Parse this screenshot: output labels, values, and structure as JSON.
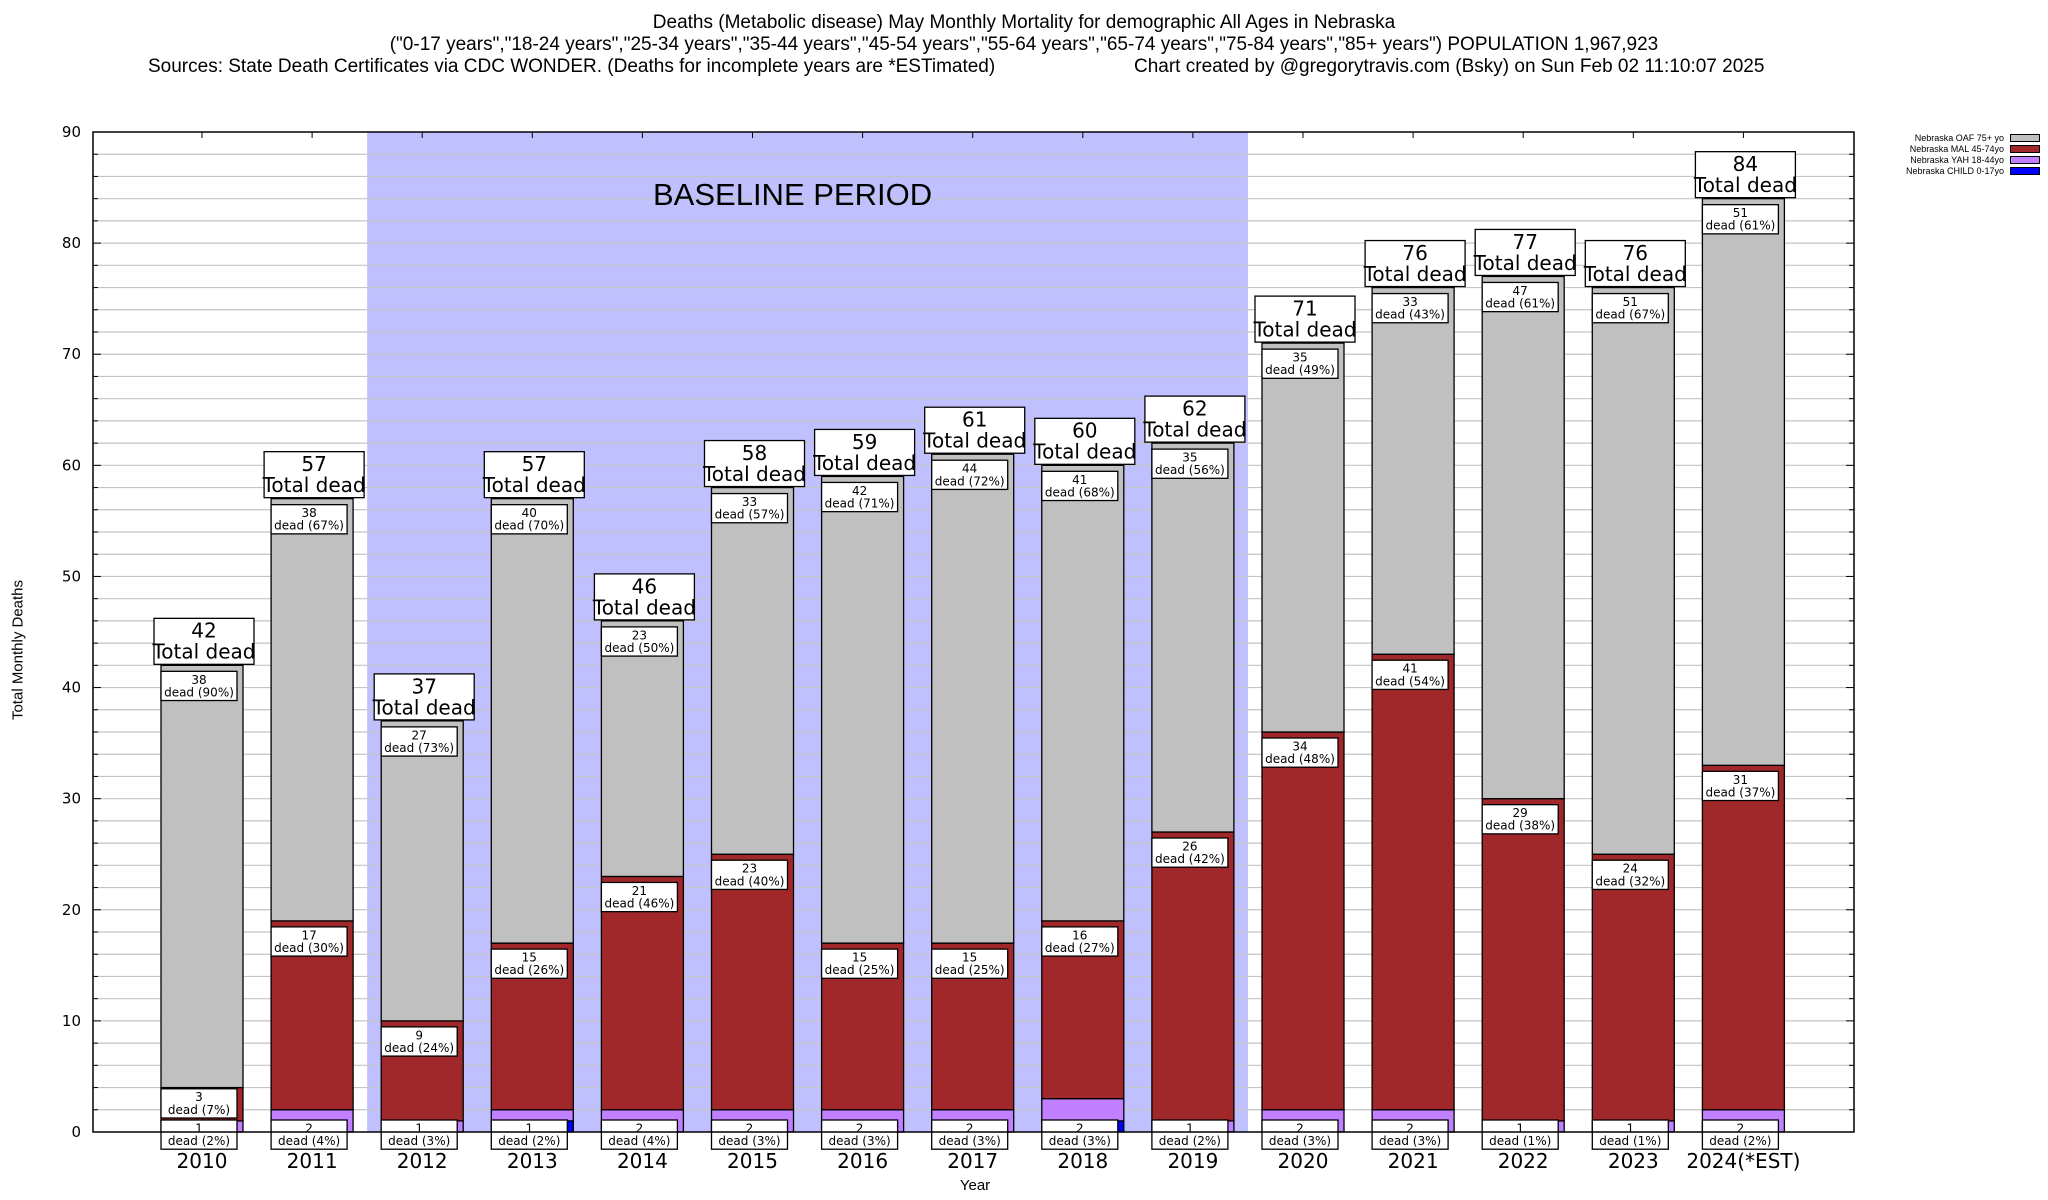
{
  "header": {
    "title": "Deaths (Metabolic disease) May Monthly Mortality for demographic All Ages in Nebraska",
    "subtitle": "(\"0-17 years\",\"18-24 years\",\"25-34 years\",\"35-44 years\",\"45-54 years\",\"55-64 years\",\"65-74 years\",\"75-84 years\",\"85+ years\") POPULATION 1,967,923",
    "sources": "Sources: State Death Certificates via CDC WONDER. (Deaths for incomplete years are *ESTimated)",
    "credit": "Chart created by @gregorytravis.com (Bsky) on Sun Feb 02 11:10:07 2025"
  },
  "chart_data": {
    "type": "bar",
    "stacked": true,
    "title": "Deaths (Metabolic disease) May Monthly Mortality for demographic All Ages in Nebraska",
    "xlabel": "Year",
    "ylabel": "Total Monthly Deaths",
    "ylim": [
      0,
      90
    ],
    "yticks": [
      0,
      10,
      20,
      30,
      40,
      50,
      60,
      70,
      80,
      90
    ],
    "grid": true,
    "legend_position": "top-right",
    "categories": [
      "2010",
      "2011",
      "2012",
      "2013",
      "2014",
      "2015",
      "2016",
      "2017",
      "2018",
      "2019",
      "2020",
      "2021",
      "2022",
      "2023",
      "2024(*EST)"
    ],
    "annotation": {
      "text": "BASELINE PERIOD",
      "from_category": "2012",
      "to_category": "2019",
      "color": "#c0c0ff"
    },
    "total_label_suffix": "Total dead",
    "segment_label_prefix": "dead",
    "totals": [
      42,
      57,
      37,
      57,
      46,
      58,
      59,
      61,
      60,
      62,
      71,
      76,
      77,
      76,
      84
    ],
    "series": [
      {
        "name": "Nebraska CHILD 0-17yo",
        "color": "#0000ff",
        "values": [
          0,
          0,
          0,
          1,
          0,
          0,
          0,
          0,
          1,
          0,
          0,
          0,
          0,
          0,
          0
        ],
        "labels": [
          null,
          null,
          null,
          null,
          null,
          null,
          null,
          null,
          null,
          null,
          null,
          null,
          null,
          null,
          null
        ]
      },
      {
        "name": "Nebraska YAH 18-44yo",
        "color": "#c080ff",
        "values": [
          1,
          2,
          1,
          1,
          2,
          2,
          2,
          2,
          2,
          1,
          2,
          2,
          1,
          1,
          2
        ],
        "pct": [
          "2%",
          "4%",
          "3%",
          "2%",
          "4%",
          "3%",
          "3%",
          "3%",
          "3%",
          "2%",
          "3%",
          "3%",
          "1%",
          "1%",
          "2%"
        ]
      },
      {
        "name": "Nebraska MAL 45-74yo",
        "color": "#a0282a",
        "values": [
          3,
          17,
          9,
          15,
          21,
          23,
          15,
          15,
          16,
          26,
          34,
          41,
          29,
          24,
          31
        ],
        "pct": [
          "7%",
          "30%",
          "24%",
          "26%",
          "46%",
          "40%",
          "25%",
          "25%",
          "27%",
          "42%",
          "48%",
          "54%",
          "38%",
          "32%",
          "37%"
        ]
      },
      {
        "name": "Nebraska OAF 75+ yo",
        "color": "#c0c0c0",
        "values": [
          38,
          38,
          27,
          40,
          23,
          33,
          42,
          44,
          41,
          35,
          35,
          33,
          47,
          51,
          51
        ],
        "pct": [
          "90%",
          "67%",
          "73%",
          "70%",
          "50%",
          "57%",
          "71%",
          "72%",
          "68%",
          "56%",
          "49%",
          "43%",
          "61%",
          "67%",
          "61%"
        ]
      }
    ],
    "legend": [
      {
        "label": "Nebraska OAF 75+ yo",
        "color": "#c0c0c0"
      },
      {
        "label": "Nebraska MAL 45-74yo",
        "color": "#a0282a"
      },
      {
        "label": "Nebraska YAH 18-44yo",
        "color": "#c080ff"
      },
      {
        "label": "Nebraska CHILD 0-17yo",
        "color": "#0000ff"
      }
    ]
  }
}
